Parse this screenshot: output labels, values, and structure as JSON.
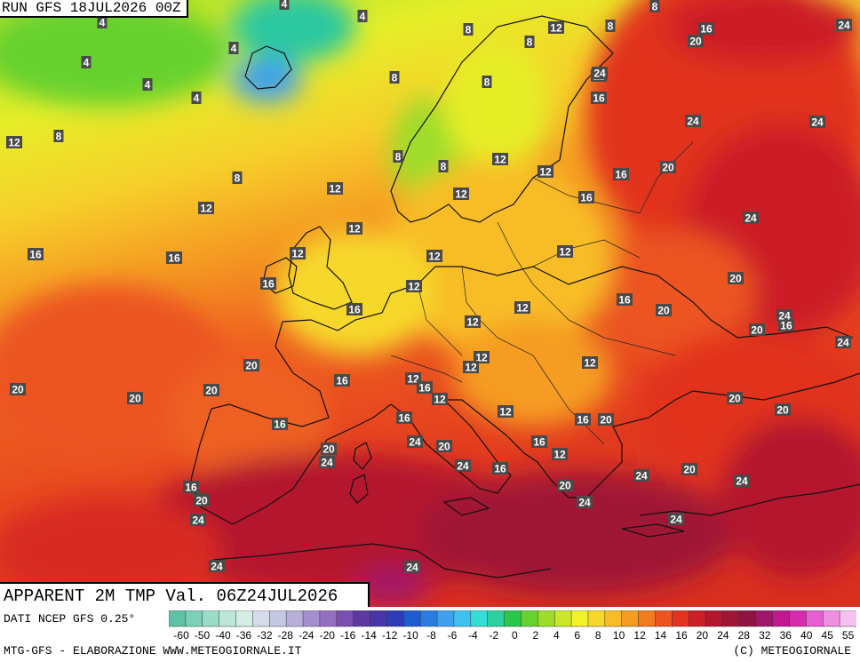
{
  "run_label": "RUN GFS 18JUL2026 00Z",
  "title": "APPARENT 2M TMP Val. 06Z24JUL2026",
  "source_label": "DATI NCEP GFS 0.25°",
  "credit_left": "MTG-GFS - ELABORAZIONE WWW.METEOGIORNALE.IT",
  "credit_right": "(C) METEOGIORNALE",
  "scale": {
    "ticks": [
      "-60",
      "-50",
      "-40",
      "-36",
      "-32",
      "-28",
      "-24",
      "-20",
      "-16",
      "-14",
      "-12",
      "-10",
      "-8",
      "-6",
      "-4",
      "-2",
      "0",
      "2",
      "4",
      "6",
      "8",
      "10",
      "12",
      "14",
      "16",
      "20",
      "24",
      "28",
      "32",
      "36",
      "40",
      "45",
      "55"
    ],
    "colors": [
      "#5ec3a6",
      "#7ad1b8",
      "#9adcc8",
      "#bde8d9",
      "#d4eee5",
      "#d6dbe9",
      "#c5c8e3",
      "#b8b0da",
      "#a58fcf",
      "#9370c2",
      "#7a4fb1",
      "#5c3aa0",
      "#4a35a8",
      "#2d3cb5",
      "#1f5ccf",
      "#2a7de0",
      "#3fa0ec",
      "#3ec1ee",
      "#34ddd6",
      "#2ed0a0",
      "#2cc74a",
      "#66d12f",
      "#9ddd2a",
      "#cce628",
      "#f2f22a",
      "#f6d82a",
      "#f8bd26",
      "#f59c22",
      "#f27a1f",
      "#ec5520",
      "#e1331f",
      "#cc1e26",
      "#b4162e",
      "#a01436",
      "#8d1341",
      "#a0166a",
      "#c0188e",
      "#d82cb0",
      "#e65ed0",
      "#ef8fe2",
      "#f6c2ef"
    ]
  },
  "map_labels": [
    {
      "v": "4"
    },
    {
      "v": "4"
    },
    {
      "v": "4"
    },
    {
      "v": "4"
    },
    {
      "v": "4"
    },
    {
      "v": "4"
    },
    {
      "v": "4"
    },
    {
      "v": "8"
    },
    {
      "v": "8"
    },
    {
      "v": "8"
    },
    {
      "v": "8"
    },
    {
      "v": "8"
    },
    {
      "v": "8"
    },
    {
      "v": "8"
    },
    {
      "v": "8"
    },
    {
      "v": "8"
    },
    {
      "v": "8"
    },
    {
      "v": "12"
    },
    {
      "v": "12"
    },
    {
      "v": "12"
    },
    {
      "v": "12"
    },
    {
      "v": "12"
    },
    {
      "v": "12"
    },
    {
      "v": "12"
    },
    {
      "v": "12"
    },
    {
      "v": "12"
    },
    {
      "v": "12"
    },
    {
      "v": "12"
    },
    {
      "v": "12"
    },
    {
      "v": "12"
    },
    {
      "v": "12"
    },
    {
      "v": "12"
    },
    {
      "v": "12"
    },
    {
      "v": "12"
    },
    {
      "v": "12"
    },
    {
      "v": "12"
    },
    {
      "v": "12"
    },
    {
      "v": "12"
    },
    {
      "v": "12"
    },
    {
      "v": "16"
    },
    {
      "v": "16"
    },
    {
      "v": "16"
    },
    {
      "v": "16"
    },
    {
      "v": "16"
    },
    {
      "v": "16"
    },
    {
      "v": "16"
    },
    {
      "v": "16"
    },
    {
      "v": "16"
    },
    {
      "v": "16"
    },
    {
      "v": "16"
    },
    {
      "v": "16"
    },
    {
      "v": "16"
    },
    {
      "v": "16"
    },
    {
      "v": "16"
    },
    {
      "v": "16"
    },
    {
      "v": "16"
    },
    {
      "v": "16"
    },
    {
      "v": "20"
    },
    {
      "v": "20"
    },
    {
      "v": "20"
    },
    {
      "v": "20"
    },
    {
      "v": "20"
    },
    {
      "v": "20"
    },
    {
      "v": "20"
    },
    {
      "v": "20"
    },
    {
      "v": "20"
    },
    {
      "v": "20"
    },
    {
      "v": "20"
    },
    {
      "v": "20"
    },
    {
      "v": "20"
    },
    {
      "v": "20"
    },
    {
      "v": "20"
    },
    {
      "v": "20"
    },
    {
      "v": "20"
    },
    {
      "v": "24"
    },
    {
      "v": "24"
    },
    {
      "v": "24"
    },
    {
      "v": "24"
    },
    {
      "v": "24"
    },
    {
      "v": "24"
    },
    {
      "v": "24"
    },
    {
      "v": "24"
    },
    {
      "v": "24"
    },
    {
      "v": "24"
    },
    {
      "v": "24"
    },
    {
      "v": "24"
    },
    {
      "v": "24"
    },
    {
      "v": "24"
    },
    {
      "v": "24"
    },
    {
      "v": "24"
    },
    {
      "v": "24"
    },
    {
      "v": "24"
    }
  ]
}
